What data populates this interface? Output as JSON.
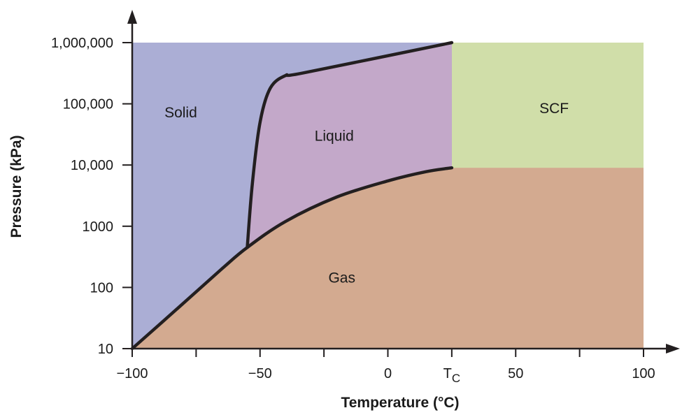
{
  "chart_data": {
    "type": "area",
    "title": "",
    "xlabel": "Temperature (°C)",
    "ylabel": "Pressure (kPa)",
    "xlim": [
      -100,
      100
    ],
    "ylim": [
      10,
      1000000
    ],
    "y_scale": "log",
    "grid": false,
    "legend": "none",
    "x_ticks": [
      {
        "value": -100,
        "label": "−100"
      },
      {
        "value": -50,
        "label": "−50"
      },
      {
        "value": 0,
        "label": "0"
      },
      {
        "value": 25,
        "label": "T",
        "subscript": "C"
      },
      {
        "value": 50,
        "label": "50"
      },
      {
        "value": 100,
        "label": "100"
      }
    ],
    "x_minor_ticks": [
      -75,
      -25,
      75
    ],
    "y_ticks": [
      {
        "value": 10,
        "label": "10"
      },
      {
        "value": 100,
        "label": "100"
      },
      {
        "value": 1000,
        "label": "1000"
      },
      {
        "value": 10000,
        "label": "10,000"
      },
      {
        "value": 100000,
        "label": "100,000"
      },
      {
        "value": 1000000,
        "label": "1,000,000"
      }
    ],
    "critical_point": {
      "x": 25,
      "y": 9000
    },
    "curves": [
      {
        "name": "sublimation-vaporization",
        "points": [
          [
            -100,
            10
          ],
          [
            -80,
            55
          ],
          [
            -65,
            200
          ],
          [
            -55,
            450
          ],
          [
            -40,
            1200
          ],
          [
            -20,
            3000
          ],
          [
            0,
            5500
          ],
          [
            15,
            7800
          ],
          [
            25,
            9000
          ]
        ]
      },
      {
        "name": "melting",
        "points": [
          [
            -55,
            450
          ],
          [
            -53,
            5000
          ],
          [
            -50,
            50000
          ],
          [
            -46,
            180000
          ],
          [
            -40,
            290000
          ],
          [
            -33,
            320000
          ],
          [
            25,
            1000000
          ]
        ]
      }
    ],
    "regions": [
      {
        "label": "Solid",
        "color": "#abaed5",
        "label_at": [
          -81,
          60000
        ]
      },
      {
        "label": "Liquid",
        "color": "#c3a8c9",
        "label_at": [
          -21,
          25000
        ]
      },
      {
        "label": "SCF",
        "color": "#d0dea9",
        "label_at": [
          65,
          70000
        ]
      },
      {
        "label": "Gas",
        "color": "#d3aa90",
        "label_at": [
          -18,
          120
        ]
      }
    ],
    "curve_color": "#231f20"
  }
}
